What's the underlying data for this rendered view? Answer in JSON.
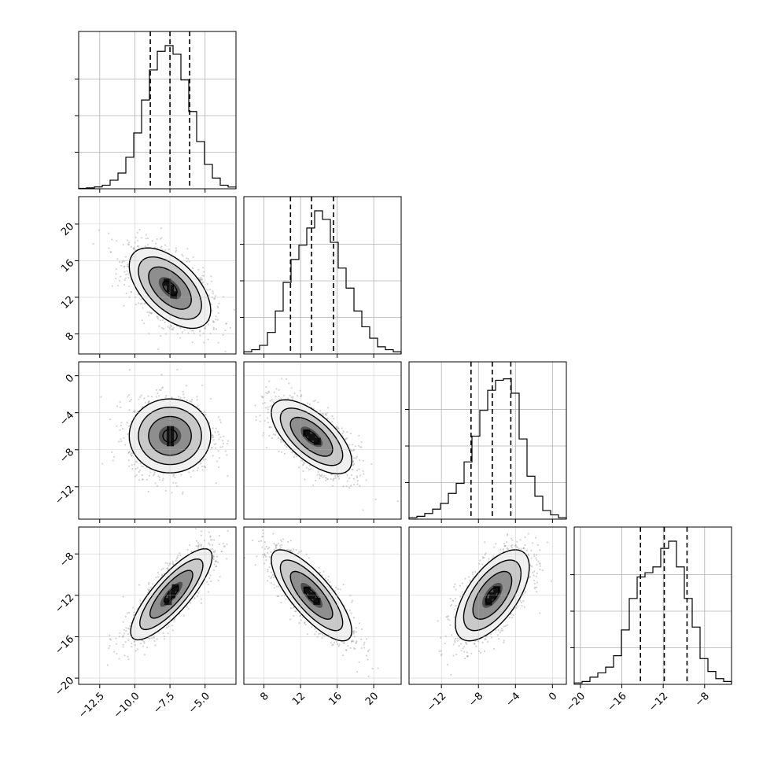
{
  "chart_data": {
    "type": "corner",
    "title": "",
    "grid": true,
    "params": [
      {
        "range": [
          -14.0,
          -2.8
        ],
        "ticks": [
          -12.5,
          -10.0,
          -7.5,
          -5.0
        ],
        "tick_labels": [
          "−12.5",
          "−10.0",
          "−7.5",
          "−5.0"
        ],
        "quantiles": [
          -8.9,
          -7.5,
          -6.1
        ],
        "hist": [
          0.003,
          0.006,
          0.013,
          0.025,
          0.06,
          0.11,
          0.22,
          0.39,
          0.62,
          0.83,
          0.96,
          1.0,
          0.94,
          0.76,
          0.54,
          0.33,
          0.17,
          0.075,
          0.025,
          0.012
        ]
      },
      {
        "range": [
          5.8,
          23.0
        ],
        "ticks": [
          8,
          12,
          16,
          20
        ],
        "tick_labels": [
          "8",
          "12",
          "16",
          "20"
        ],
        "quantiles": [
          10.9,
          13.2,
          15.6
        ],
        "hist": [
          0.015,
          0.03,
          0.06,
          0.15,
          0.3,
          0.5,
          0.66,
          0.76,
          0.88,
          1.0,
          0.94,
          0.78,
          0.6,
          0.46,
          0.3,
          0.19,
          0.11,
          0.05,
          0.03,
          0.015
        ]
      },
      {
        "range": [
          -15.5,
          1.5
        ],
        "ticks": [
          -12,
          -8,
          -4,
          0
        ],
        "tick_labels": [
          "−12",
          "−8",
          "−4",
          "0"
        ],
        "quantiles": [
          -8.8,
          -6.5,
          -4.5
        ],
        "hist": [
          0.01,
          0.02,
          0.04,
          0.07,
          0.11,
          0.18,
          0.25,
          0.4,
          0.58,
          0.76,
          0.9,
          0.97,
          0.98,
          0.88,
          0.56,
          0.3,
          0.16,
          0.06,
          0.03,
          0.01
        ]
      },
      {
        "range": [
          -20.6,
          -5.4
        ],
        "ticks": [
          -20,
          -16,
          -12,
          -8
        ],
        "tick_labels": [
          "−20",
          "−16",
          "−12",
          "−8"
        ],
        "quantiles": [
          -14.2,
          -11.9,
          -9.7
        ],
        "hist": [
          0.01,
          0.02,
          0.05,
          0.08,
          0.12,
          0.2,
          0.38,
          0.6,
          0.75,
          0.78,
          0.82,
          0.95,
          1.0,
          0.82,
          0.6,
          0.4,
          0.18,
          0.09,
          0.04,
          0.02
        ]
      }
    ],
    "pairs": [
      {
        "row": 1,
        "col": 0,
        "mean": [
          -7.5,
          13.0
        ],
        "sd": [
          1.45,
          2.2
        ],
        "corr": -0.55
      },
      {
        "row": 2,
        "col": 0,
        "mean": [
          -7.5,
          -6.5
        ],
        "sd": [
          1.45,
          2.0
        ],
        "corr": 0.0
      },
      {
        "row": 2,
        "col": 1,
        "mean": [
          13.2,
          -6.6
        ],
        "sd": [
          2.2,
          2.0
        ],
        "corr": -0.65
      },
      {
        "row": 3,
        "col": 0,
        "mean": [
          -7.4,
          -11.9
        ],
        "sd": [
          1.45,
          2.2
        ],
        "corr": 0.82
      },
      {
        "row": 3,
        "col": 1,
        "mean": [
          13.2,
          -12.0
        ],
        "sd": [
          2.2,
          2.2
        ],
        "corr": -0.78
      },
      {
        "row": 3,
        "col": 2,
        "mean": [
          -6.5,
          -12.0
        ],
        "sd": [
          2.0,
          2.2
        ],
        "corr": 0.62
      }
    ],
    "colors": {
      "line": "#000000",
      "grid": "#b0b0b0",
      "points": "#9e9e9e",
      "frame": "#000000"
    }
  }
}
